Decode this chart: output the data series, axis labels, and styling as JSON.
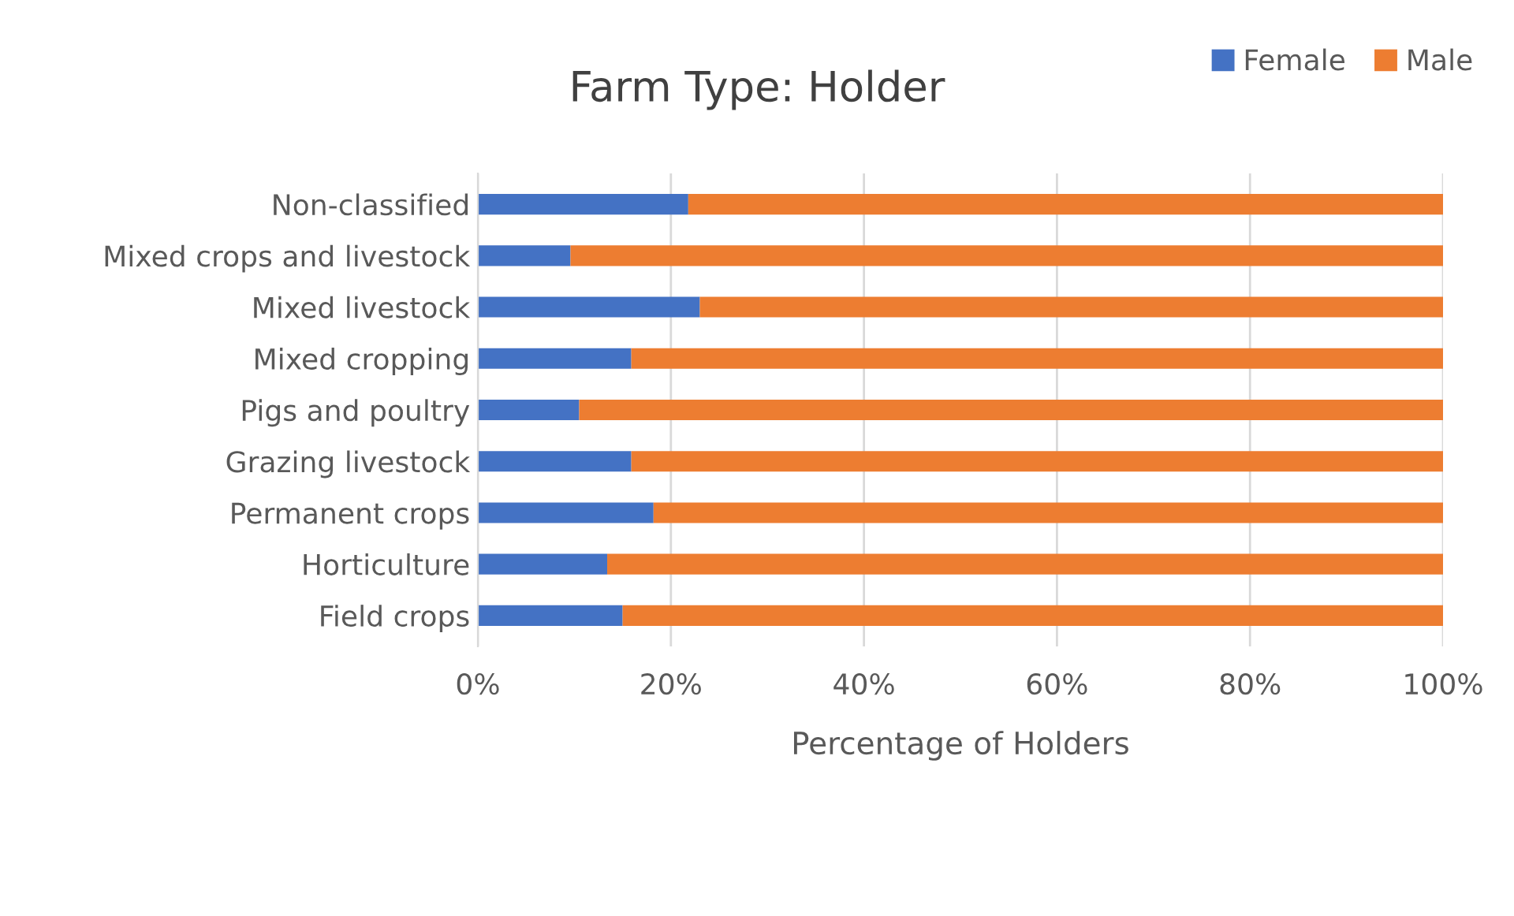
{
  "chart_data": {
    "type": "bar",
    "title": "Farm Type: Holder",
    "xlabel": "Percentage of Holders",
    "orientation": "horizontal",
    "stacked": true,
    "categories": [
      "Non-classified",
      "Mixed crops and livestock",
      "Mixed livestock",
      "Mixed cropping",
      "Pigs and poultry",
      "Grazing livestock",
      "Permanent crops",
      "Horticulture",
      "Field crops"
    ],
    "series": [
      {
        "name": "Female",
        "color": "#4472c4",
        "values": [
          21.8,
          9.6,
          23.0,
          15.9,
          10.5,
          15.9,
          18.2,
          13.4,
          15.0
        ]
      },
      {
        "name": "Male",
        "color": "#ed7d31",
        "values": [
          78.2,
          90.4,
          77.0,
          84.1,
          89.5,
          84.1,
          81.8,
          86.6,
          85.0
        ]
      }
    ],
    "xlim": [
      0,
      100
    ],
    "xticks": [
      {
        "value": 0,
        "label": "0%"
      },
      {
        "value": 20,
        "label": "20%"
      },
      {
        "value": 40,
        "label": "40%"
      },
      {
        "value": 60,
        "label": "60%"
      },
      {
        "value": 80,
        "label": "80%"
      },
      {
        "value": 100,
        "label": "100%"
      }
    ],
    "grid": "x",
    "legend": "top right"
  }
}
